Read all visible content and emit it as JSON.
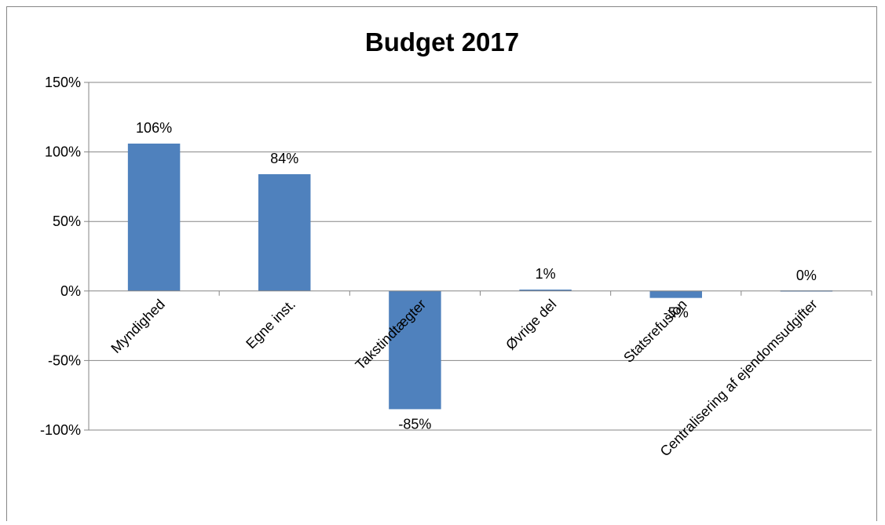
{
  "chart_data": {
    "type": "bar",
    "title": "Budget 2017",
    "xlabel": "",
    "ylabel": "",
    "categories": [
      "Myndighed",
      "Egne inst.",
      "Takstindtægter",
      "Øvrige del",
      "Statsrefusion",
      "Centralisering af ejendomsudgifter"
    ],
    "values": [
      106,
      84,
      -85,
      1,
      -5,
      0
    ],
    "data_labels": [
      "106%",
      "84%",
      "-85%",
      "1%",
      "-5%",
      "0%"
    ],
    "ylim": [
      -100,
      150
    ],
    "yticks": [
      150,
      100,
      50,
      0,
      -50,
      -100
    ],
    "ytick_labels": [
      "150%",
      "100%",
      "50%",
      "0%",
      "-50%",
      "-100%"
    ],
    "grid": true,
    "legend": "none",
    "bar_color": "#4F81BD",
    "grid_color": "#868686",
    "border_color": "#868686"
  }
}
